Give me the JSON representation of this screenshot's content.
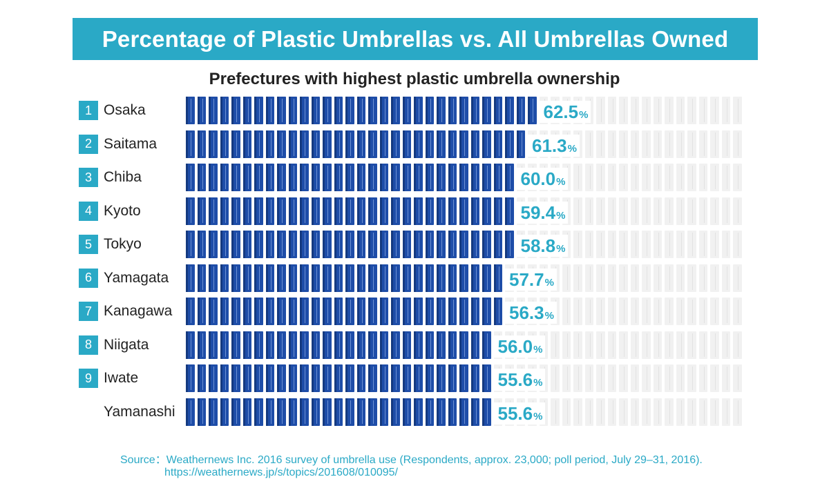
{
  "banner_title": "Percentage of Plastic Umbrellas vs. All Umbrellas Owned",
  "chart_data": {
    "type": "bar",
    "subtitle": "Prefectures with highest plastic umbrella ownership",
    "unit": "%",
    "categories": [
      "Osaka",
      "Saitama",
      "Chiba",
      "Kyoto",
      "Tokyo",
      "Yamagata",
      "Kanagawa",
      "Niigata",
      "Iwate",
      "Yamanashi"
    ],
    "ranks": [
      "1",
      "2",
      "3",
      "4",
      "5",
      "6",
      "7",
      "8",
      "9",
      ""
    ],
    "values": [
      62.5,
      61.3,
      60.0,
      59.4,
      58.8,
      57.7,
      56.3,
      56.0,
      55.6,
      55.6
    ],
    "value_labels": [
      "62.5",
      "61.3",
      "60.0",
      "59.4",
      "58.8",
      "57.7",
      "56.3",
      "56.0",
      "55.6",
      "55.6"
    ],
    "ylim": [
      0,
      100
    ],
    "colors": {
      "filled": "#1e4da8",
      "empty": "#f1f1f1",
      "accent": "#2aa9c6"
    }
  },
  "footer": {
    "source": "Source：Weathernews Inc. 2016 survey of umbrella use (Respondents, approx. 23,000; poll period, July 29–31, 2016).",
    "url": "https://weathernews.jp/s/topics/201608/010095/"
  }
}
